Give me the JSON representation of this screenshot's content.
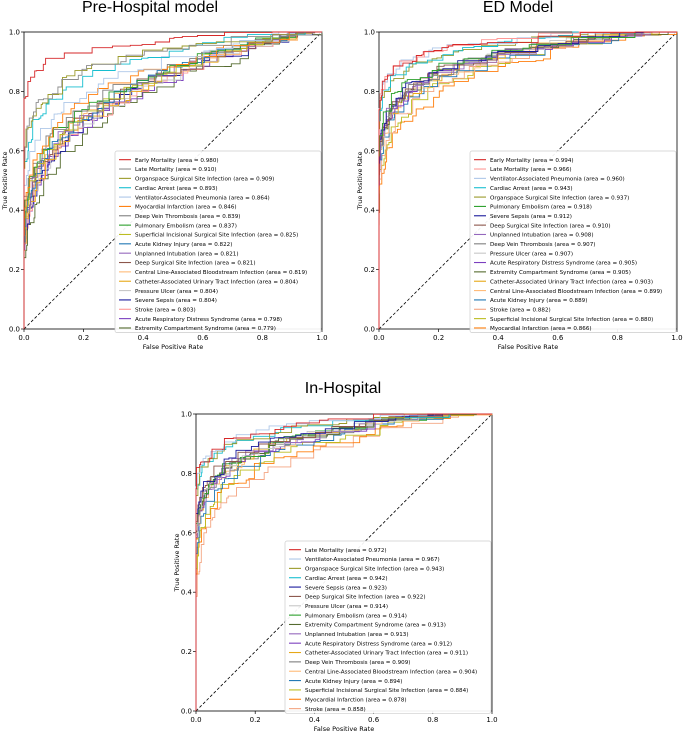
{
  "chart_data": [
    {
      "type": "line",
      "title": "Pre-Hospital model",
      "xlabel": "False Positive Rate",
      "ylabel": "True Positive Rate",
      "xlim": [
        0,
        1
      ],
      "ylim": [
        0,
        1
      ],
      "xticks": [
        "0.0",
        "0.2",
        "0.4",
        "0.6",
        "0.8",
        "1.0"
      ],
      "yticks": [
        "0.0",
        "0.2",
        "0.4",
        "0.6",
        "0.8",
        "1.0"
      ],
      "legend_position": "lower-right",
      "chance_line": true,
      "series": [
        {
          "name": "Early Mortality (area = 0.980)",
          "auc": 0.98,
          "color": "#d62728"
        },
        {
          "name": "Late Mortality (area = 0.910)",
          "auc": 0.91,
          "color": "#8c8c8c"
        },
        {
          "name": "Organspace Surgical Site Infection (area = 0.909)",
          "auc": 0.909,
          "color": "#9a9a2a"
        },
        {
          "name": "Cardiac Arrest (area = 0.893)",
          "auc": 0.893,
          "color": "#17becf"
        },
        {
          "name": "Ventilator-Associated Pneumonia (area = 0.864)",
          "auc": 0.864,
          "color": "#aec7e8"
        },
        {
          "name": "Myocardial Infarction (area = 0.846)",
          "auc": 0.846,
          "color": "#ff7f0e"
        },
        {
          "name": "Deep Vein Thrombosis (area = 0.839)",
          "auc": 0.839,
          "color": "#7f7f7f"
        },
        {
          "name": "Pulmonary Embolism (area = 0.837)",
          "auc": 0.837,
          "color": "#2ca02c"
        },
        {
          "name": "Superficial Incisional Surgical Site Infection (area = 0.825)",
          "auc": 0.825,
          "color": "#bcbd22"
        },
        {
          "name": "Acute Kidney Injury (area = 0.822)",
          "auc": 0.822,
          "color": "#1f77b4"
        },
        {
          "name": "Unplanned Intubation (area = 0.821)",
          "auc": 0.821,
          "color": "#9467bd"
        },
        {
          "name": "Deep Surgical Site Infection (area = 0.821)",
          "auc": 0.821,
          "color": "#8c564b"
        },
        {
          "name": "Central Line-Associated Bloodstream Infection (area = 0.819)",
          "auc": 0.819,
          "color": "#ffbb78"
        },
        {
          "name": "Catheter-Associated Urinary Tract Infection (area = 0.804)",
          "auc": 0.804,
          "color": "#e6a817"
        },
        {
          "name": "Pressure Ulcer (area = 0.804)",
          "auc": 0.804,
          "color": "#c7c7c7"
        },
        {
          "name": "Severe Sepsis (area = 0.804)",
          "auc": 0.804,
          "color": "#1a1a9c"
        },
        {
          "name": "Stroke (area = 0.803)",
          "auc": 0.803,
          "color": "#ff9896"
        },
        {
          "name": "Acute Respiratory Distress Syndrome (area = 0.798)",
          "auc": 0.798,
          "color": "#7b3fbf"
        },
        {
          "name": "Extremity Compartment Syndrome (area = 0.779)",
          "auc": 0.779,
          "color": "#556b2f"
        }
      ]
    },
    {
      "type": "line",
      "title": "ED Model",
      "xlabel": "False Positive Rate",
      "ylabel": "True Positive Rate",
      "xlim": [
        0,
        1
      ],
      "ylim": [
        0,
        1
      ],
      "xticks": [
        "0.0",
        "0.2",
        "0.4",
        "0.6",
        "0.8",
        "1.0"
      ],
      "yticks": [
        "0.0",
        "0.2",
        "0.4",
        "0.6",
        "0.8",
        "1.0"
      ],
      "legend_position": "lower-right",
      "chance_line": true,
      "series": [
        {
          "name": "Early Mortality (area = 0.994)",
          "auc": 0.994,
          "color": "#d62728"
        },
        {
          "name": "Late Mortality (area = 0.966)",
          "auc": 0.966,
          "color": "#ff9896"
        },
        {
          "name": "Ventilator-Associated Pneumonia (area = 0.960)",
          "auc": 0.96,
          "color": "#aec7e8"
        },
        {
          "name": "Cardiac Arrest (area = 0.943)",
          "auc": 0.943,
          "color": "#17becf"
        },
        {
          "name": "Organspace Surgical Site Infection (area = 0.937)",
          "auc": 0.937,
          "color": "#9a9a2a"
        },
        {
          "name": "Pulmonary Embolism (area = 0.918)",
          "auc": 0.918,
          "color": "#2ca02c"
        },
        {
          "name": "Severe Sepsis (area = 0.912)",
          "auc": 0.912,
          "color": "#1a1a9c"
        },
        {
          "name": "Deep Surgical Site Infection (area = 0.910)",
          "auc": 0.91,
          "color": "#8c564b"
        },
        {
          "name": "Unplanned Intubation (area = 0.908)",
          "auc": 0.908,
          "color": "#9467bd"
        },
        {
          "name": "Deep Vein Thrombosis (area = 0.907)",
          "auc": 0.907,
          "color": "#7f7f7f"
        },
        {
          "name": "Pressure Ulcer (area = 0.907)",
          "auc": 0.907,
          "color": "#c7c7c7"
        },
        {
          "name": "Acute Respiratory Distress Syndrome (area = 0.905)",
          "auc": 0.905,
          "color": "#7b3fbf"
        },
        {
          "name": "Extremity Compartment Syndrome (area = 0.905)",
          "auc": 0.905,
          "color": "#556b2f"
        },
        {
          "name": "Catheter-Associated Urinary Tract Infection (area = 0.903)",
          "auc": 0.903,
          "color": "#e6a817"
        },
        {
          "name": "Central Line-Associated Bloodstream Infection (area = 0.899)",
          "auc": 0.899,
          "color": "#ffbb78"
        },
        {
          "name": "Acute Kidney Injury (area = 0.889)",
          "auc": 0.889,
          "color": "#1f77b4"
        },
        {
          "name": "Stroke (area = 0.882)",
          "auc": 0.882,
          "color": "#f4a582"
        },
        {
          "name": "Superficial Incisional Surgical Site Infection (area = 0.880)",
          "auc": 0.88,
          "color": "#bcbd22"
        },
        {
          "name": "Myocardial Infarction (area = 0.866)",
          "auc": 0.866,
          "color": "#ff7f0e"
        }
      ]
    },
    {
      "type": "line",
      "title": "In-Hospital",
      "xlabel": "False Positive Rate",
      "ylabel": "True Positive Rate",
      "xlim": [
        0,
        1
      ],
      "ylim": [
        0,
        1
      ],
      "xticks": [
        "0.0",
        "0.2",
        "0.4",
        "0.6",
        "0.8",
        "1.0"
      ],
      "yticks": [
        "0.0",
        "0.2",
        "0.4",
        "0.6",
        "0.8",
        "1.0"
      ],
      "legend_position": "lower-right",
      "chance_line": true,
      "series": [
        {
          "name": "Late Mortality (area = 0.972)",
          "auc": 0.972,
          "color": "#d62728"
        },
        {
          "name": "Ventilator-Associated Pneumonia (area = 0.967)",
          "auc": 0.967,
          "color": "#aec7e8"
        },
        {
          "name": "Organspace Surgical Site Infection (area = 0.943)",
          "auc": 0.943,
          "color": "#9a9a2a"
        },
        {
          "name": "Cardiac Arrest (area = 0.942)",
          "auc": 0.942,
          "color": "#17becf"
        },
        {
          "name": "Severe Sepsis (area = 0.923)",
          "auc": 0.923,
          "color": "#1a1a9c"
        },
        {
          "name": "Deep Surgical Site Infection (area = 0.922)",
          "auc": 0.922,
          "color": "#8c564b"
        },
        {
          "name": "Pressure Ulcer (area = 0.914)",
          "auc": 0.914,
          "color": "#c7c7c7"
        },
        {
          "name": "Pulmonary Embolism (area = 0.914)",
          "auc": 0.914,
          "color": "#2ca02c"
        },
        {
          "name": "Extremity Compartment Syndrome (area = 0.913)",
          "auc": 0.913,
          "color": "#556b2f"
        },
        {
          "name": "Unplanned Intubation (area = 0.913)",
          "auc": 0.913,
          "color": "#9467bd"
        },
        {
          "name": "Acute Respiratory Distress Syndrome (area = 0.912)",
          "auc": 0.912,
          "color": "#7b3fbf"
        },
        {
          "name": "Catheter-Associated Urinary Tract Infection (area = 0.911)",
          "auc": 0.911,
          "color": "#e6a817"
        },
        {
          "name": "Deep Vein Thrombosis (area = 0.909)",
          "auc": 0.909,
          "color": "#7f7f7f"
        },
        {
          "name": "Central Line-Associated Bloodstream Infection (area = 0.904)",
          "auc": 0.904,
          "color": "#ffbb78"
        },
        {
          "name": "Acute Kidney Injury (area = 0.894)",
          "auc": 0.894,
          "color": "#1f77b4"
        },
        {
          "name": "Superficial Incisional Surgical Site Infection (area = 0.884)",
          "auc": 0.884,
          "color": "#bcbd22"
        },
        {
          "name": "Myocardial Infarction (area = 0.878)",
          "auc": 0.878,
          "color": "#ff7f0e"
        },
        {
          "name": "Stroke (area = 0.858)",
          "auc": 0.858,
          "color": "#f4a582"
        }
      ]
    }
  ]
}
